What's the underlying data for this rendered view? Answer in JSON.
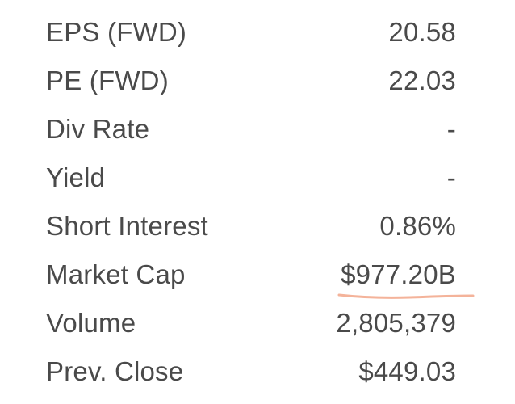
{
  "stats": [
    {
      "label": "EPS (FWD)",
      "value": "20.58"
    },
    {
      "label": "PE (FWD)",
      "value": "22.03"
    },
    {
      "label": "Div Rate",
      "value": "-"
    },
    {
      "label": "Yield",
      "value": "-"
    },
    {
      "label": "Short Interest",
      "value": "0.86%"
    },
    {
      "label": "Market Cap",
      "value": "$977.20B"
    },
    {
      "label": "Volume",
      "value": "2,805,379"
    },
    {
      "label": "Prev. Close",
      "value": "$449.03"
    }
  ],
  "highlight": {
    "row": "Market Cap",
    "color": "#f4b39a"
  }
}
